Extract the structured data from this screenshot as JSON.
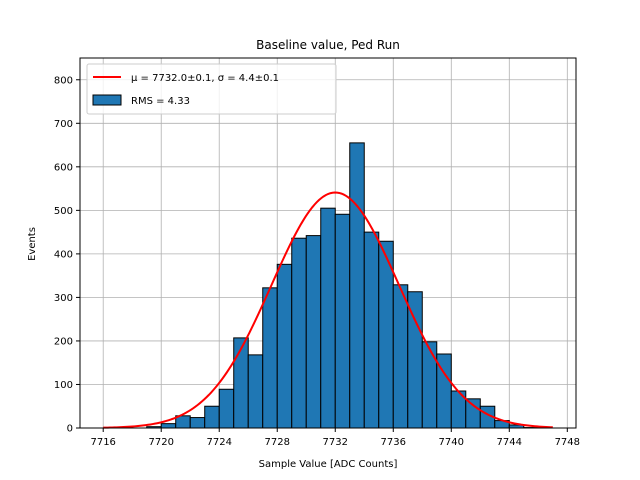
{
  "chart_data": {
    "type": "bar",
    "title": "Baseline value, Ped Run",
    "xlabel": "Sample Value [ADC Counts]",
    "ylabel": "Events",
    "xlim": [
      7714.4,
      7748.6
    ],
    "ylim": [
      0,
      850
    ],
    "xticks": [
      7716,
      7720,
      7724,
      7728,
      7732,
      7736,
      7740,
      7744,
      7748
    ],
    "yticks": [
      0,
      100,
      200,
      300,
      400,
      500,
      600,
      700,
      800
    ],
    "grid": true,
    "legend_position": "top-left",
    "bin_width": 1,
    "histogram": {
      "name": "RMS = 4.33",
      "color": "#1f77b4",
      "bin_starts": [
        7719,
        7720,
        7721,
        7722,
        7723,
        7724,
        7725,
        7726,
        7727,
        7728,
        7729,
        7730,
        7731,
        7732,
        7733,
        7734,
        7735,
        7736,
        7737,
        7738,
        7739,
        7740,
        7741,
        7742,
        7743,
        7744,
        7745
      ],
      "values": [
        3,
        10,
        28,
        24,
        50,
        89,
        207,
        168,
        322,
        376,
        436,
        442,
        505,
        491,
        655,
        450,
        429,
        329,
        313,
        198,
        170,
        85,
        67,
        50,
        17,
        7,
        1
      ]
    },
    "fit": {
      "name": "μ = 7732.0±0.1, σ = 4.4±0.1",
      "color": "#ff0000",
      "mu": 7732.0,
      "sigma": 4.4,
      "amplitude": 541,
      "x_range": [
        7716,
        7747
      ]
    }
  }
}
